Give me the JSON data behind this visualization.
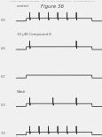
{
  "title": "Figure 36",
  "header_text": "Patent Application Publication    Apr. 12, 2012  Sheet 18 of 74    US 2012/0088824 A1",
  "background_color": "#f0f0f0",
  "fig_bg": "#e8e8e8",
  "trace_color": "#333333",
  "text_color": "#555555",
  "title_color": "#444444",
  "traces": [
    {
      "label": "control",
      "has_spikes": true,
      "spike_count": 6,
      "plateau": 0.4,
      "y_tick": "-66",
      "y_tick2": "-1.1"
    },
    {
      "label": "10 µM Compound 8",
      "has_spikes": true,
      "spike_count": 2,
      "plateau": 0.4,
      "y_tick": "-66",
      "y_tick2": ""
    },
    {
      "label": "",
      "has_spikes": false,
      "spike_count": 0,
      "plateau": 0.4,
      "y_tick": "-67",
      "y_tick2": ""
    },
    {
      "label": "Wash",
      "has_spikes": true,
      "spike_count": 3,
      "plateau": 0.4,
      "y_tick": "-63",
      "y_tick2": ""
    },
    {
      "label": "",
      "has_spikes": true,
      "spike_count": 6,
      "plateau": 0.4,
      "y_tick": "-70",
      "y_tick2": ""
    }
  ]
}
